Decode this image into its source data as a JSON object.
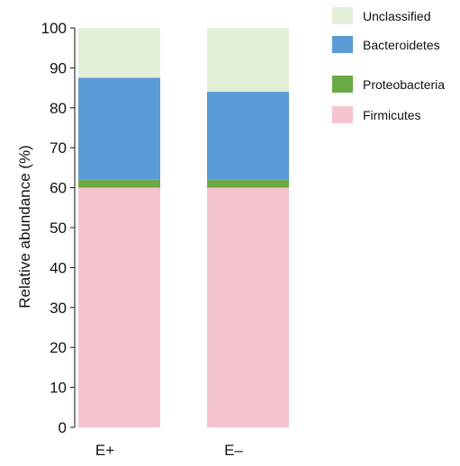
{
  "chart_data": {
    "type": "bar",
    "stacked": true,
    "categories": [
      "E+",
      "E–"
    ],
    "series": [
      {
        "name": "Firmicutes",
        "values": [
          60,
          60
        ],
        "color": "#f5c5cf"
      },
      {
        "name": "Proteobacteria",
        "values": [
          2,
          2
        ],
        "color": "#6aaa45"
      },
      {
        "name": "Bacteroidetes",
        "values": [
          25.5,
          22
        ],
        "color": "#5b9bd8"
      },
      {
        "name": "Unclassified",
        "values": [
          12.5,
          16
        ],
        "color": "#e2f0d9"
      }
    ],
    "legend_order": [
      "Unclassified",
      "Bacteroidetes",
      "Proteobacteria",
      "Firmicutes"
    ],
    "legend_position": "top-right",
    "title": "",
    "xlabel": "",
    "ylabel": "Relative abundance (%)",
    "ylim": [
      0,
      100
    ],
    "yticks": [
      0,
      10,
      20,
      30,
      40,
      50,
      60,
      70,
      80,
      90,
      100
    ],
    "grid": false
  }
}
